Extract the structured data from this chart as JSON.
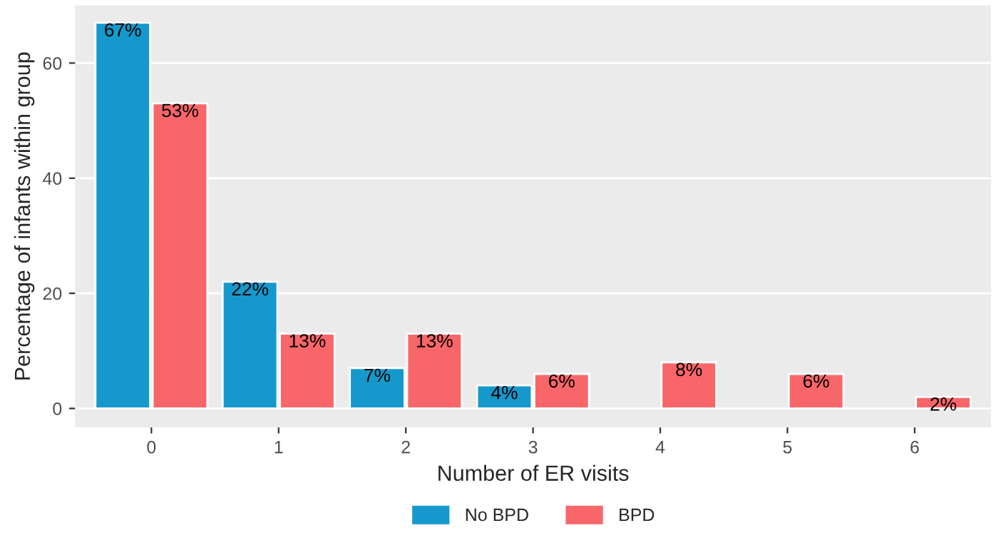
{
  "chart_data": {
    "type": "bar",
    "xlabel": "Number of ER visits",
    "ylabel": "Percentage of infants within group",
    "categories": [
      "0",
      "1",
      "2",
      "3",
      "4",
      "5",
      "6"
    ],
    "series": [
      {
        "name": "No BPD",
        "color": "#1599cc",
        "values": [
          67,
          22,
          7,
          4,
          null,
          null,
          null
        ],
        "value_labels": [
          "67%",
          "22%",
          "7%",
          "4%",
          null,
          null,
          null
        ]
      },
      {
        "name": "BPD",
        "color": "#f8666a",
        "values": [
          53,
          13,
          13,
          6,
          8,
          6,
          2
        ],
        "value_labels": [
          "53%",
          "13%",
          "13%",
          "6%",
          "8%",
          "6%",
          "2%"
        ]
      }
    ],
    "ylim": [
      -3.3,
      70
    ],
    "yticks": [
      0,
      20,
      40,
      60
    ],
    "grid": "y",
    "legend": "bottom"
  }
}
